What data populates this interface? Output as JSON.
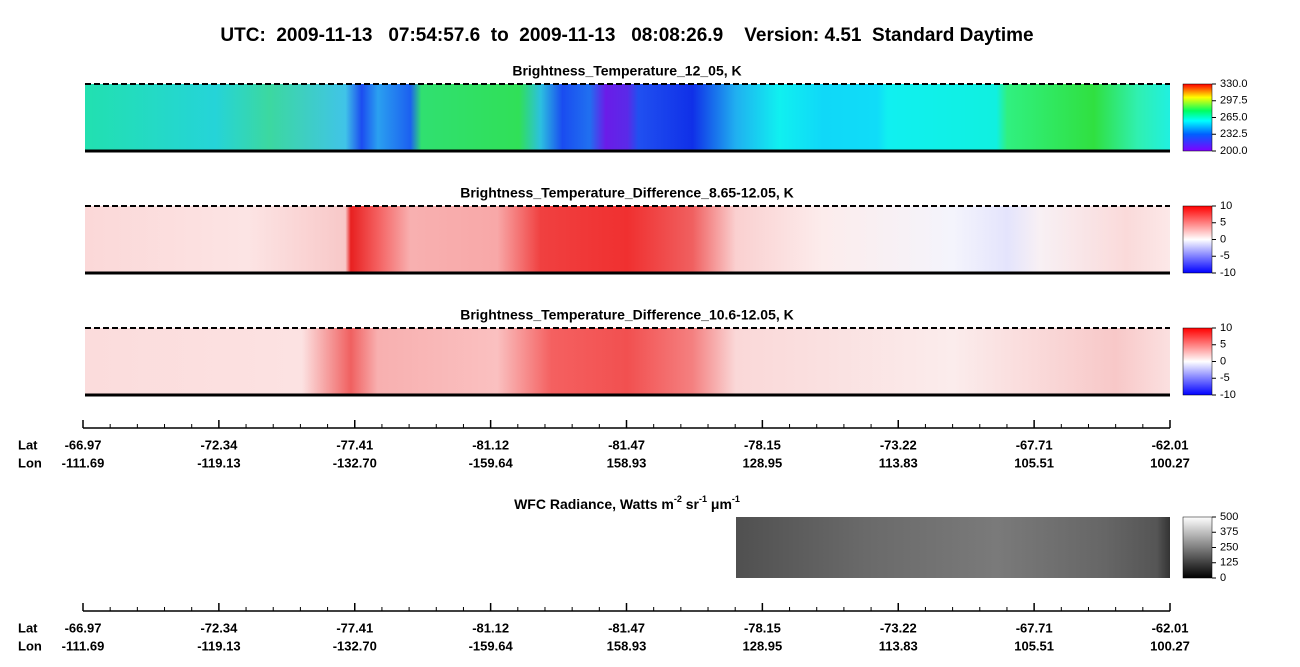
{
  "title": "UTC:  2009-11-13   07:54:57.6  to  2009-11-13   08:08:26.9    Version: 4.51  Standard Daytime",
  "panels": [
    {
      "title": "Brightness_Temperature_12_05, K",
      "lim": [
        200,
        330
      ],
      "ticks": [
        {
          "value": 330,
          "label": "330.0"
        },
        {
          "value": 297.5,
          "label": "297.5"
        },
        {
          "value": 265,
          "label": "265.0"
        },
        {
          "value": 232.5,
          "label": "232.5"
        },
        {
          "value": 200,
          "label": "200.0"
        }
      ]
    },
    {
      "title": "Brightness_Temperature_Difference_8.65-12.05, K",
      "lim": [
        -10,
        10
      ],
      "ticks": [
        10,
        5,
        0,
        -5,
        -10
      ]
    },
    {
      "title": "Brightness_Temperature_Difference_10.6-12.05, K",
      "lim": [
        -10,
        10
      ],
      "ticks": [
        10,
        5,
        0,
        -5,
        -10
      ]
    },
    {
      "title_parts": [
        {
          "text": "WFC Radiance, Watts m"
        },
        {
          "text": "-2",
          "sup": true
        },
        {
          "text": " sr"
        },
        {
          "text": "-1",
          "sup": true
        },
        {
          "text": " μm"
        },
        {
          "text": "-1",
          "sup": true
        }
      ],
      "lim": [
        0,
        500
      ],
      "ticks": [
        500,
        375,
        250,
        125,
        0
      ]
    }
  ],
  "axis": {
    "lat_label": "Lat",
    "lon_label": "Lon",
    "lat": [
      "-66.97",
      "-72.34",
      "-77.41",
      "-81.12",
      "-81.47",
      "-78.15",
      "-73.22",
      "-67.71",
      "-62.01"
    ],
    "lon": [
      "-111.69",
      "-119.13",
      "-132.70",
      "-159.64",
      "158.93",
      "128.95",
      "113.83",
      "105.51",
      "100.27"
    ]
  }
}
